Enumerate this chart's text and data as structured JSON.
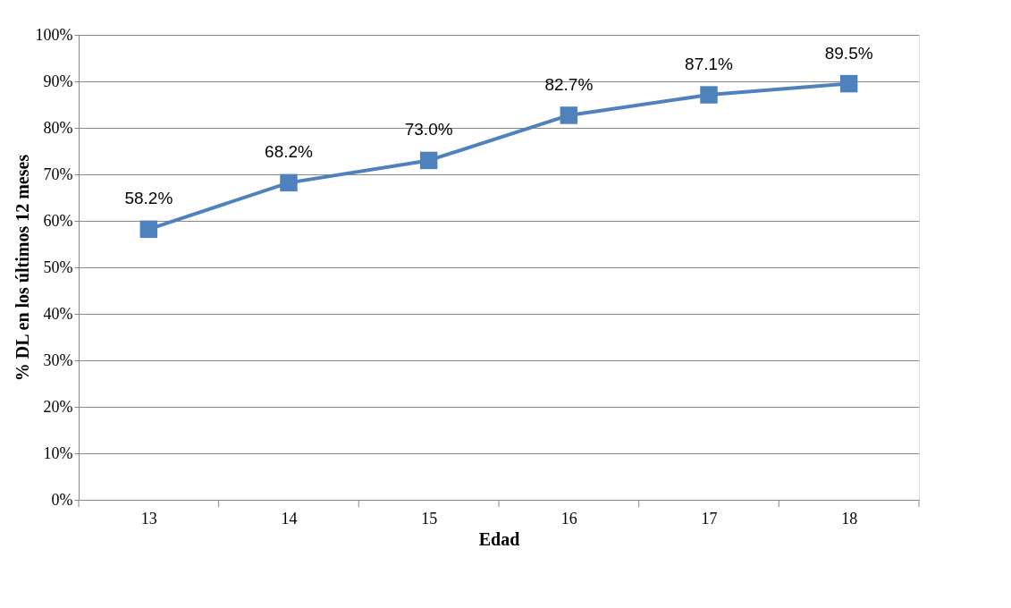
{
  "chart_data": {
    "type": "line",
    "xlabel": "Edad",
    "ylabel": "% DL en los últimos 12 meses",
    "categories": [
      "13",
      "14",
      "15",
      "16",
      "17",
      "18"
    ],
    "series": [
      {
        "color": "#4f81bd",
        "values": [
          58.2,
          68.2,
          73.0,
          82.7,
          87.1,
          89.5
        ],
        "value_labels": [
          "58.2%",
          "68.2%",
          "73.0%",
          "82.7%",
          "87.1%",
          "89.5%"
        ]
      }
    ],
    "ylim": [
      0,
      100
    ],
    "yticks": [
      {
        "value": 0,
        "label": "0%"
      },
      {
        "value": 10,
        "label": "10%"
      },
      {
        "value": 20,
        "label": "20%"
      },
      {
        "value": 30,
        "label": "30%"
      },
      {
        "value": 40,
        "label": "40%"
      },
      {
        "value": 50,
        "label": "50%"
      },
      {
        "value": 60,
        "label": "60%"
      },
      {
        "value": 70,
        "label": "70%"
      },
      {
        "value": 80,
        "label": "80%"
      },
      {
        "value": 90,
        "label": "90%"
      },
      {
        "value": 100,
        "label": "100%"
      }
    ],
    "grid": "y",
    "marker": "square",
    "line_style": "solid"
  }
}
